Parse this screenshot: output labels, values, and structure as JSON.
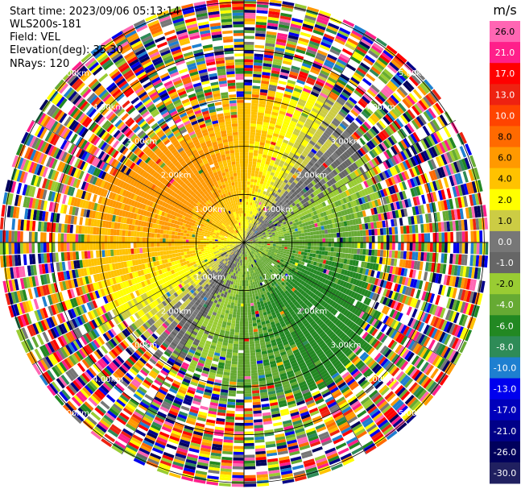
{
  "header": {
    "start_time": "Start time: 2023/09/06 05:13:14",
    "instrument": "WLS200s-181",
    "field": "Field: VEL",
    "elevation": "Elevation(deg): 35.30",
    "nrays": "NRays: 120"
  },
  "chart_data": {
    "type": "ppi",
    "field": "VEL",
    "units": "m/s",
    "nrays": 120,
    "range_rings_km": [
      1.0,
      2.0,
      3.0,
      4.0,
      5.0
    ],
    "range_ring_labels": [
      "1.00km",
      "2.00km",
      "3.00km",
      "4.00km",
      "5.00km"
    ],
    "max_range_km": 5.95,
    "colorbar": {
      "label": "m/s",
      "ticks": [
        "26.0",
        "21.0",
        "17.0",
        "13.0",
        "10.0",
        "8.0",
        "6.0",
        "4.0",
        "2.0",
        "1.0",
        "0.0",
        "-1.0",
        "-2.0",
        "-4.0",
        "-6.0",
        "-8.0",
        "-10.0",
        "-13.0",
        "-17.0",
        "-21.0",
        "-26.0",
        "-30.0"
      ],
      "colors": [
        "#ff66b3",
        "#ff1f8a",
        "#ff0000",
        "#ee2211",
        "#ff4400",
        "#ff6a00",
        "#ff9900",
        "#ffc200",
        "#ffff00",
        "#cccc44",
        "#777777",
        "#666666",
        "#99cc33",
        "#66aa33",
        "#228822",
        "#2e8b57",
        "#1e7fd0",
        "#0000ee",
        "#0000bb",
        "#000088",
        "#00005c",
        "#202060"
      ]
    },
    "velocity_pattern": {
      "positive_sector": "north-west (towards radar from NW)",
      "negative_sector": "south / south-east",
      "coherent_range_km": 3.2,
      "peak_positive_ms": 6.0,
      "peak_negative_ms": -6.0
    }
  }
}
